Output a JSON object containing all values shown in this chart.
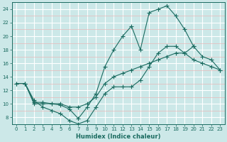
{
  "bg_color": "#cce8e8",
  "grid_color_major": "#e8b8b8",
  "grid_color_white": "#ffffff",
  "line_color": "#1a6b60",
  "xlabel": "Humidex (Indice chaleur)",
  "xlim": [
    -0.5,
    23.5
  ],
  "ylim": [
    7,
    25
  ],
  "yticks": [
    8,
    10,
    12,
    14,
    16,
    18,
    20,
    22,
    24
  ],
  "xticks": [
    0,
    1,
    2,
    3,
    4,
    5,
    6,
    7,
    8,
    9,
    10,
    11,
    12,
    13,
    14,
    15,
    16,
    17,
    18,
    19,
    20,
    21,
    22,
    23
  ],
  "line1_x": [
    0,
    1,
    2,
    3,
    4,
    5,
    6,
    7,
    8,
    9,
    10,
    11,
    12,
    13,
    14,
    15,
    16,
    17,
    18,
    19,
    20,
    21,
    22,
    23
  ],
  "line1_y": [
    13,
    13,
    10.2,
    10.2,
    10.0,
    9.8,
    9.2,
    7.8,
    9.5,
    11.5,
    15.5,
    18.0,
    20.0,
    21.5,
    18.0,
    23.5,
    24.0,
    24.5,
    23.0,
    21.0,
    18.5,
    17.0,
    16.5,
    15.0
  ],
  "line2_x": [
    1,
    2,
    3,
    4,
    5,
    6,
    7,
    8,
    9,
    10,
    11,
    12,
    13,
    14,
    15,
    16,
    17,
    18,
    19,
    20
  ],
  "line2_y": [
    13.0,
    10.5,
    9.5,
    9.0,
    8.5,
    7.5,
    7.0,
    7.5,
    9.5,
    11.5,
    12.5,
    12.5,
    12.5,
    13.5,
    15.5,
    17.5,
    18.5,
    18.5,
    17.5,
    18.5
  ],
  "line3_x": [
    0,
    1,
    2,
    3,
    4,
    5,
    6,
    7,
    8,
    9,
    10,
    11,
    12,
    13,
    14,
    15,
    16,
    17,
    18,
    19,
    20,
    21,
    22,
    23
  ],
  "line3_y": [
    13.0,
    13.0,
    10.0,
    10.0,
    10.0,
    10.0,
    9.5,
    9.5,
    10.0,
    11.0,
    13.0,
    14.0,
    14.5,
    15.0,
    15.5,
    16.0,
    16.5,
    17.0,
    17.5,
    17.5,
    16.5,
    16.0,
    15.5,
    15.0
  ]
}
